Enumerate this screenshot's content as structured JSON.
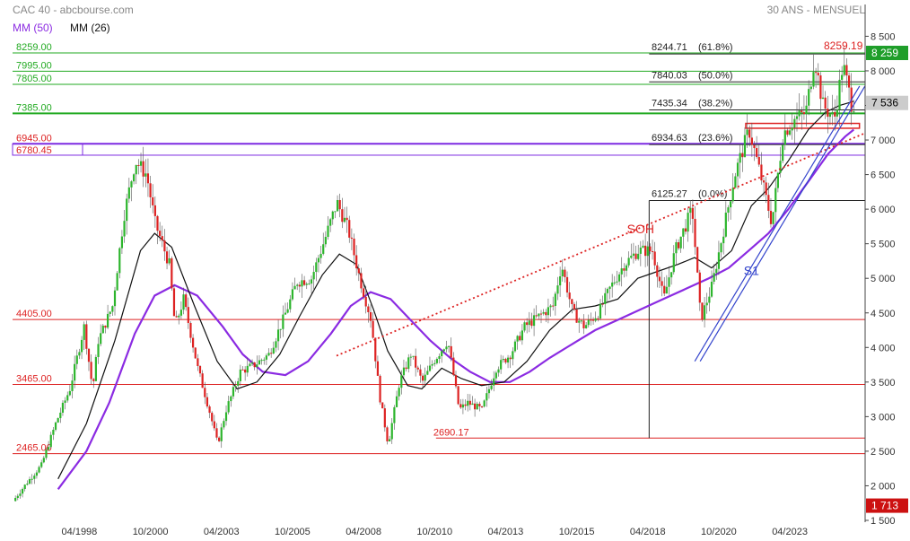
{
  "header": {
    "title": "CAC 40 - abcbourse.com",
    "period": "30 ANS - MENSUEL",
    "legend": [
      {
        "label": "MM (50)",
        "color": "#8b2be2"
      },
      {
        "label": "MM (26)",
        "color": "#111111"
      }
    ]
  },
  "chart_data": {
    "type": "candlestick",
    "title": "CAC 40",
    "ylim": [
      1500,
      8700
    ],
    "y_ticks": [
      1500,
      2000,
      2500,
      3000,
      3500,
      4000,
      4500,
      5000,
      5500,
      6000,
      6500,
      7000,
      7500,
      8000,
      8500
    ],
    "y_tick_labels": [
      "1 500",
      "2 000",
      "2 500",
      "3 000",
      "3 500",
      "4 000",
      "4 500",
      "5 000",
      "5 500",
      "6 000",
      "6 500",
      "7 000",
      "7 500",
      "8 000",
      "8 500"
    ],
    "x_ticks": [
      {
        "label": "04/1998",
        "t": 1998.25
      },
      {
        "label": "10/2000",
        "t": 2000.75
      },
      {
        "label": "04/2003",
        "t": 2003.25
      },
      {
        "label": "10/2005",
        "t": 2005.75
      },
      {
        "label": "04/2008",
        "t": 2008.25
      },
      {
        "label": "10/2010",
        "t": 2010.75
      },
      {
        "label": "04/2013",
        "t": 2013.25
      },
      {
        "label": "10/2015",
        "t": 2015.75
      },
      {
        "label": "04/2018",
        "t": 2018.25
      },
      {
        "label": "10/2020",
        "t": 2020.75
      },
      {
        "label": "04/2023",
        "t": 2023.25
      }
    ],
    "xlim": [
      1995.9,
      2025.9
    ],
    "price_path": [
      [
        1996.0,
        1780
      ],
      [
        1996.5,
        2050
      ],
      [
        1997.0,
        2300
      ],
      [
        1997.5,
        2900
      ],
      [
        1998.0,
        3400
      ],
      [
        1998.5,
        4300
      ],
      [
        1998.8,
        3400
      ],
      [
        1999.0,
        4100
      ],
      [
        1999.5,
        4600
      ],
      [
        1999.9,
        5900
      ],
      [
        2000.3,
        6700
      ],
      [
        2000.7,
        6500
      ],
      [
        2001.0,
        5800
      ],
      [
        2001.5,
        5200
      ],
      [
        2001.7,
        4300
      ],
      [
        2002.0,
        4700
      ],
      [
        2002.5,
        3700
      ],
      [
        2002.9,
        3100
      ],
      [
        2003.2,
        2600
      ],
      [
        2003.5,
        3100
      ],
      [
        2004.0,
        3650
      ],
      [
        2004.5,
        3750
      ],
      [
        2005.0,
        3900
      ],
      [
        2005.5,
        4400
      ],
      [
        2006.0,
        4950
      ],
      [
        2006.5,
        5000
      ],
      [
        2007.0,
        5600
      ],
      [
        2007.4,
        6100
      ],
      [
        2007.8,
        5700
      ],
      [
        2008.2,
        5000
      ],
      [
        2008.6,
        4400
      ],
      [
        2008.9,
        3300
      ],
      [
        2009.2,
        2600
      ],
      [
        2009.6,
        3500
      ],
      [
        2010.0,
        3900
      ],
      [
        2010.4,
        3500
      ],
      [
        2010.8,
        3800
      ],
      [
        2011.3,
        4100
      ],
      [
        2011.7,
        3100
      ],
      [
        2012.0,
        3200
      ],
      [
        2012.5,
        3100
      ],
      [
        2013.0,
        3700
      ],
      [
        2013.5,
        3900
      ],
      [
        2014.0,
        4300
      ],
      [
        2014.5,
        4450
      ],
      [
        2015.0,
        4600
      ],
      [
        2015.3,
        5200
      ],
      [
        2015.7,
        4500
      ],
      [
        2016.1,
        4300
      ],
      [
        2016.6,
        4500
      ],
      [
        2017.0,
        4850
      ],
      [
        2017.5,
        5200
      ],
      [
        2018.0,
        5400
      ],
      [
        2018.5,
        5400
      ],
      [
        2018.9,
        4700
      ],
      [
        2019.3,
        5400
      ],
      [
        2019.9,
        6000
      ],
      [
        2020.2,
        4400
      ],
      [
        2020.6,
        4900
      ],
      [
        2020.9,
        5500
      ],
      [
        2021.4,
        6500
      ],
      [
        2021.9,
        7150
      ],
      [
        2022.3,
        6500
      ],
      [
        2022.7,
        5800
      ],
      [
        2023.1,
        7100
      ],
      [
        2023.5,
        7300
      ],
      [
        2023.9,
        7400
      ],
      [
        2024.2,
        8200
      ],
      [
        2024.5,
        7500
      ],
      [
        2024.9,
        7300
      ],
      [
        2025.2,
        8100
      ],
      [
        2025.5,
        7536
      ]
    ],
    "mm26_path": [
      [
        1997.5,
        2100
      ],
      [
        1998.5,
        2900
      ],
      [
        1999.5,
        4100
      ],
      [
        2000.4,
        5400
      ],
      [
        2000.9,
        5650
      ],
      [
        2001.5,
        5450
      ],
      [
        2002.3,
        4600
      ],
      [
        2003.1,
        3800
      ],
      [
        2003.8,
        3400
      ],
      [
        2004.5,
        3500
      ],
      [
        2005.3,
        3900
      ],
      [
        2006.0,
        4450
      ],
      [
        2006.8,
        5050
      ],
      [
        2007.4,
        5350
      ],
      [
        2008.0,
        5200
      ],
      [
        2008.6,
        4550
      ],
      [
        2009.1,
        3950
      ],
      [
        2009.8,
        3450
      ],
      [
        2010.3,
        3400
      ],
      [
        2011.0,
        3700
      ],
      [
        2011.7,
        3550
      ],
      [
        2012.4,
        3450
      ],
      [
        2013.2,
        3500
      ],
      [
        2014.0,
        3800
      ],
      [
        2014.8,
        4250
      ],
      [
        2015.6,
        4550
      ],
      [
        2016.4,
        4600
      ],
      [
        2017.2,
        4700
      ],
      [
        2017.9,
        5000
      ],
      [
        2018.6,
        5100
      ],
      [
        2019.3,
        5200
      ],
      [
        2019.9,
        5300
      ],
      [
        2020.5,
        5150
      ],
      [
        2021.2,
        5400
      ],
      [
        2021.9,
        6050
      ],
      [
        2022.5,
        6300
      ],
      [
        2023.2,
        6700
      ],
      [
        2023.9,
        7150
      ],
      [
        2024.5,
        7400
      ],
      [
        2025.0,
        7500
      ],
      [
        2025.5,
        7560
      ]
    ],
    "mm50_path": [
      [
        1997.5,
        1950
      ],
      [
        1998.5,
        2500
      ],
      [
        1999.3,
        3200
      ],
      [
        2000.2,
        4200
      ],
      [
        2000.9,
        4750
      ],
      [
        2001.6,
        4900
      ],
      [
        2002.4,
        4750
      ],
      [
        2003.3,
        4300
      ],
      [
        2004.0,
        3900
      ],
      [
        2004.7,
        3650
      ],
      [
        2005.5,
        3600
      ],
      [
        2006.3,
        3800
      ],
      [
        2007.1,
        4200
      ],
      [
        2007.8,
        4600
      ],
      [
        2008.5,
        4800
      ],
      [
        2009.2,
        4700
      ],
      [
        2009.9,
        4400
      ],
      [
        2010.6,
        4100
      ],
      [
        2011.3,
        3850
      ],
      [
        2012.0,
        3650
      ],
      [
        2012.7,
        3500
      ],
      [
        2013.4,
        3500
      ],
      [
        2014.1,
        3650
      ],
      [
        2014.8,
        3850
      ],
      [
        2015.6,
        4050
      ],
      [
        2016.4,
        4250
      ],
      [
        2017.2,
        4400
      ],
      [
        2018.0,
        4550
      ],
      [
        2018.8,
        4700
      ],
      [
        2019.6,
        4850
      ],
      [
        2020.4,
        5000
      ],
      [
        2021.1,
        5150
      ],
      [
        2021.8,
        5400
      ],
      [
        2022.5,
        5650
      ],
      [
        2023.2,
        6000
      ],
      [
        2023.9,
        6400
      ],
      [
        2024.6,
        6800
      ],
      [
        2025.2,
        7050
      ],
      [
        2025.5,
        7150
      ]
    ],
    "horizontal_levels": [
      {
        "label": "8259.00",
        "value": 8259,
        "color": "#22aa22"
      },
      {
        "label": "7995.00",
        "value": 7995,
        "color": "#22aa22"
      },
      {
        "label": "7805.00",
        "value": 7805,
        "color": "#22aa22"
      },
      {
        "label": "7385.00",
        "value": 7385,
        "color": "#22aa22"
      },
      {
        "label": "6945.00",
        "value": 6945,
        "color": "#dd2222"
      },
      {
        "label": "4405.00",
        "value": 4405,
        "color": "#dd2222"
      },
      {
        "label": "3465.00",
        "value": 3465,
        "color": "#dd2222"
      },
      {
        "label": "2465.00",
        "value": 2465,
        "color": "#dd2222"
      }
    ],
    "zone": {
      "label": "6780.45",
      "from": 6780.45,
      "to": 6945,
      "color": "#7d2be2"
    },
    "fibonacci": [
      {
        "label": "8244.71",
        "pct": "(61.8%)",
        "value": 8244.71
      },
      {
        "label": "7840.03",
        "pct": "(50.0%)",
        "value": 7840.03
      },
      {
        "label": "7435.34",
        "pct": "(38.2%)",
        "value": 7435.34
      },
      {
        "label": "6934.63",
        "pct": "(23.6%)",
        "value": 6934.63
      },
      {
        "label": "6125.27",
        "pct": "(0.0%)",
        "value": 6125.27
      }
    ],
    "fib_low": {
      "label": "2690.17",
      "value": 2690.17,
      "t_start": 2010.8,
      "t_anchor": 2018.3
    },
    "high_marker": {
      "label": "8259.19",
      "value": 8259.19
    },
    "last_price": {
      "label": "7 536",
      "value": 7536
    },
    "current_high_box": {
      "label": "8 259",
      "value": 8259
    },
    "current_low_box": {
      "label": "1 713",
      "value": 1713
    },
    "trendlines": [
      {
        "name": "SOH",
        "style": "dotted",
        "color": "#dd2222",
        "from": [
          2007.3,
          3880
        ],
        "to": [
          2025.9,
          7100
        ],
        "label_at": [
          2018.0,
          5650
        ]
      },
      {
        "name": "S1",
        "style": "double",
        "color": "#3344cc",
        "from": [
          2020.0,
          3800
        ],
        "to": [
          2025.8,
          7780
        ],
        "label_at": [
          2021.9,
          5050
        ]
      }
    ],
    "support_box": {
      "value_top": 7240,
      "value_bottom": 7170,
      "t_from": 2021.7,
      "t_to": 2025.7,
      "color": "#dd2222"
    }
  }
}
